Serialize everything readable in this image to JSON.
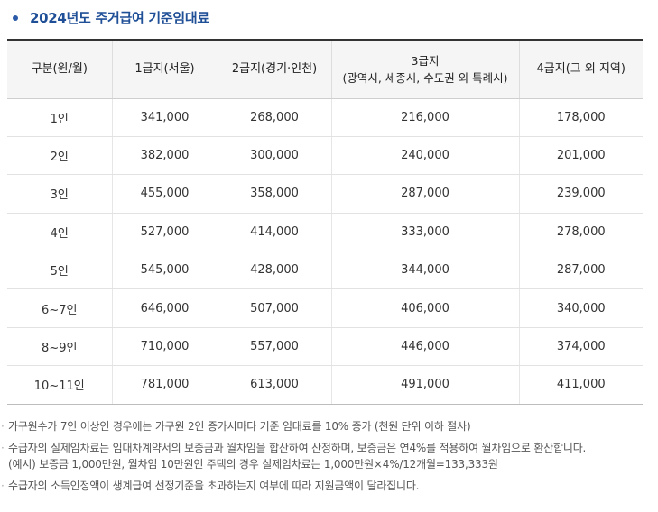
{
  "title": "2024년도 주거급여 기준임대료",
  "table": {
    "headers": [
      {
        "main": "구분(원/월)",
        "sub": ""
      },
      {
        "main": "1급지(서울)",
        "sub": ""
      },
      {
        "main": "2급지(경기·인천)",
        "sub": ""
      },
      {
        "main": "3급지",
        "sub": "(광역시, 세종시, 수도권 외 특례시)"
      },
      {
        "main": "4급지(그 외 지역)",
        "sub": ""
      }
    ],
    "rows": [
      [
        "1인",
        "341,000",
        "268,000",
        "216,000",
        "178,000"
      ],
      [
        "2인",
        "382,000",
        "300,000",
        "240,000",
        "201,000"
      ],
      [
        "3인",
        "455,000",
        "358,000",
        "287,000",
        "239,000"
      ],
      [
        "4인",
        "527,000",
        "414,000",
        "333,000",
        "278,000"
      ],
      [
        "5인",
        "545,000",
        "428,000",
        "344,000",
        "287,000"
      ],
      [
        "6~7인",
        "646,000",
        "507,000",
        "406,000",
        "340,000"
      ],
      [
        "8~9인",
        "710,000",
        "557,000",
        "446,000",
        "374,000"
      ],
      [
        "10~11인",
        "781,000",
        "613,000",
        "491,000",
        "411,000"
      ]
    ]
  },
  "notes": [
    {
      "text": "가구원수가 7인 이상인 경우에는 가구원 2인 증가시마다 기준 임대료를 10% 증가 (천원 단위 이하 절사)"
    },
    {
      "text": "수급자의 실제임차료는 임대차계약서의 보증금과 월차임을 합산하여 산정하며, 보증금은 연4%를 적용하여 월차임으로 환산합니다.",
      "text2": "(예시) 보증금 1,000만원, 월차임 10만원인 주택의 경우 실제임차료는 1,000만원×4%/12개월=133,333원"
    },
    {
      "text": "수급자의 소득인정액이 생계급여 선정기준을 초과하는지 여부에 따라 지원금액이 달라집니다."
    }
  ],
  "colors": {
    "title": "#1f4f96",
    "header_bg": "#f5f5f6",
    "rule": "#333333"
  }
}
